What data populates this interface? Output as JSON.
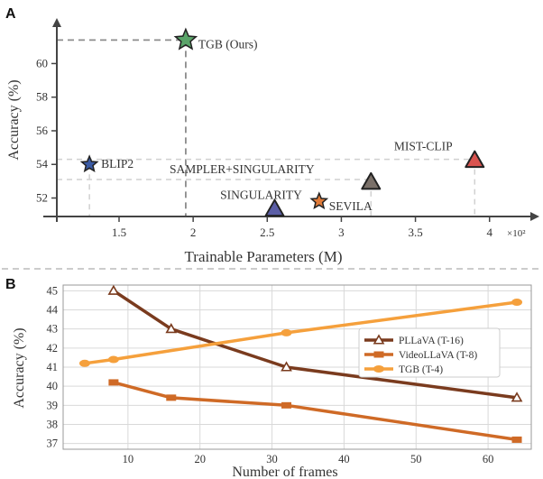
{
  "colors": {
    "axis": "#444444",
    "grid": "#d9d9d9",
    "guide": "#999999",
    "tgb_star": "#5aa469",
    "blip2_star": "#3b5ba5",
    "sevila_star": "#e07b39",
    "singularity_tri": "#5b5ea6",
    "sampler_tri": "#7a7069",
    "mistclip_tri": "#d9534f",
    "plava_line": "#7a3b1e",
    "videollava_line": "#cf6a26",
    "tgb_line": "#f5a03c"
  },
  "chart_data": [
    {
      "panel": "A",
      "type": "scatter",
      "title": "",
      "xlabel": "Trainable Parameters (M)",
      "ylabel": "Accuracy (%)",
      "x_multiplier": "×10²",
      "xlim": [
        1.08,
        4.3
      ],
      "ylim": [
        50.9,
        62.6
      ],
      "xticks": [
        "1.5",
        "2",
        "2.5",
        "3",
        "3.5",
        "4"
      ],
      "xtick_values": [
        1.5,
        2,
        2.5,
        3,
        3.5,
        4
      ],
      "yticks": [
        "52",
        "54",
        "56",
        "58",
        "60"
      ],
      "ytick_values": [
        52,
        54,
        56,
        58,
        60
      ],
      "points": [
        {
          "label": "TGB (Ours)",
          "x": 1.95,
          "y": 61.4,
          "marker": "star",
          "color_key": "tgb_star",
          "guide": "both"
        },
        {
          "label": "BLIP2",
          "x": 1.3,
          "y": 54.0,
          "marker": "star",
          "color_key": "blip2_star",
          "guide": "vertical"
        },
        {
          "label": "SEVILA",
          "x": 2.85,
          "y": 51.8,
          "marker": "star",
          "color_key": "sevila_star",
          "guide": "none"
        },
        {
          "label": "SINGULARITY",
          "x": 2.55,
          "y": 51.4,
          "marker": "triangle",
          "color_key": "singularity_tri",
          "guide": "none"
        },
        {
          "label": "SAMPLER+SINGULARITY",
          "x": 3.2,
          "y": 53.0,
          "marker": "triangle",
          "color_key": "sampler_tri",
          "guide": "vertical"
        },
        {
          "label": "MIST-CLIP",
          "x": 3.9,
          "y": 54.3,
          "marker": "triangle",
          "color_key": "mistclip_tri",
          "guide": "vertical"
        }
      ],
      "hlines": [
        61.4,
        54.3,
        53.1
      ]
    },
    {
      "panel": "B",
      "type": "line",
      "title": "",
      "xlabel": "Number of frames",
      "ylabel": "Accuracy (%)",
      "xlim": [
        1,
        66
      ],
      "ylim": [
        36.7,
        45.3
      ],
      "xticks": [
        "10",
        "20",
        "30",
        "40",
        "50",
        "60"
      ],
      "xtick_values": [
        10,
        20,
        30,
        40,
        50,
        60
      ],
      "yticks": [
        "37",
        "38",
        "39",
        "40",
        "41",
        "42",
        "43",
        "44",
        "45"
      ],
      "ytick_values": [
        37,
        38,
        39,
        40,
        41,
        42,
        43,
        44,
        45
      ],
      "grid": true,
      "legend": "right-center",
      "series": [
        {
          "name": "PLLaVA (T-16)",
          "marker": "triangle",
          "color_key": "plava_line",
          "x": [
            8,
            16,
            32,
            64
          ],
          "y": [
            45.0,
            43.0,
            41.0,
            39.4
          ]
        },
        {
          "name": "VideoLLaVA (T-8)",
          "marker": "square",
          "color_key": "videollava_line",
          "x": [
            8,
            16,
            32,
            64
          ],
          "y": [
            40.2,
            39.4,
            39.0,
            37.2
          ]
        },
        {
          "name": "TGB (T-4)",
          "marker": "circle",
          "color_key": "tgb_line",
          "x": [
            4,
            8,
            32,
            64
          ],
          "y": [
            41.2,
            41.4,
            42.8,
            44.4
          ]
        }
      ]
    }
  ],
  "panel_labels": {
    "a": "A",
    "b": "B"
  }
}
